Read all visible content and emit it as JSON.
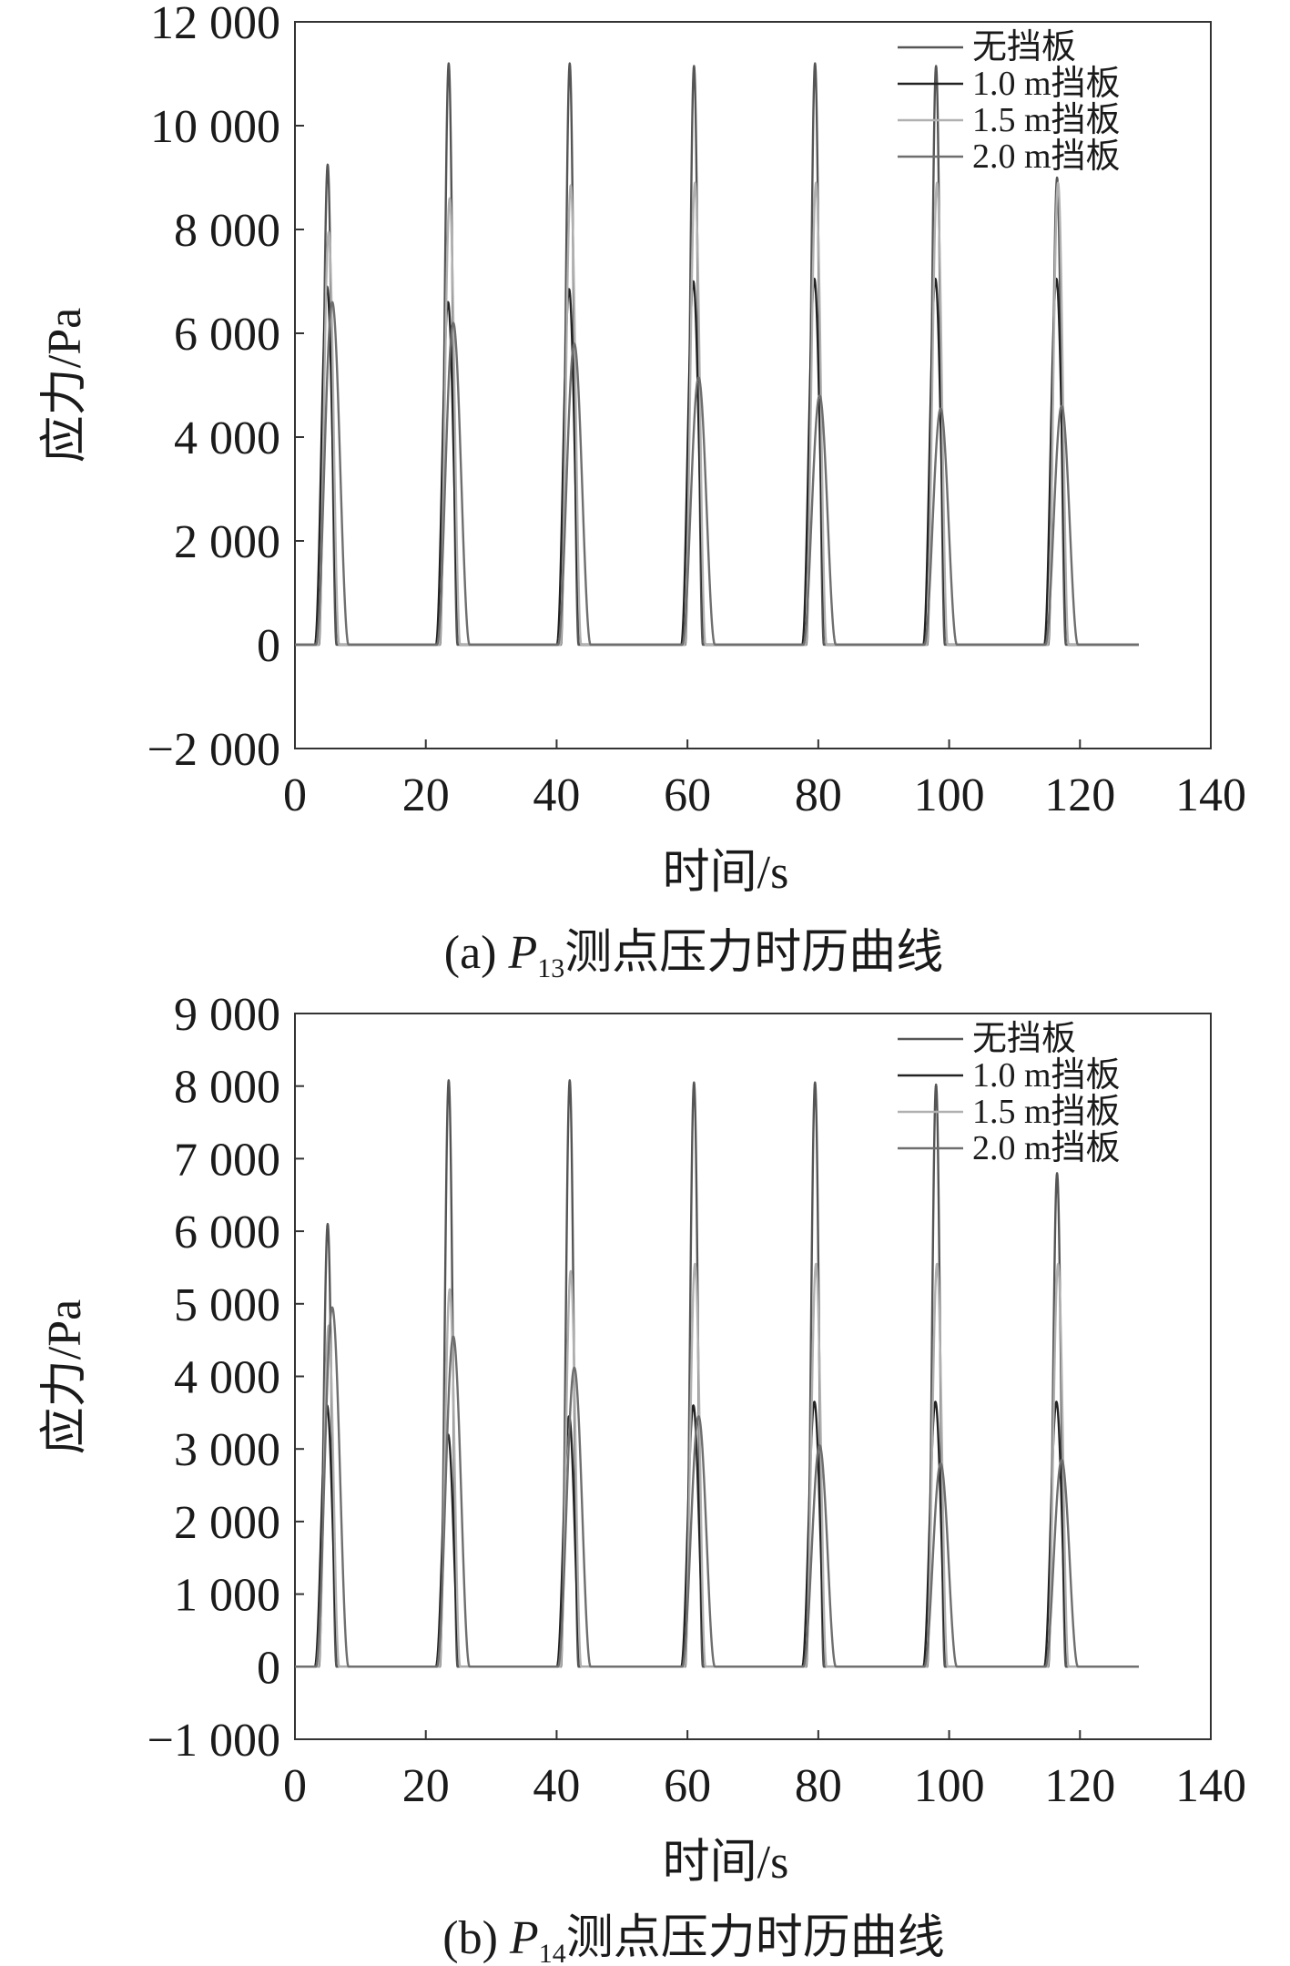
{
  "chart_data": [
    {
      "type": "line",
      "caption": {
        "prefix": "(a) ",
        "var": "P",
        "sub": "13",
        "rest": "测点压力时历曲线"
      },
      "xlabel": "时间/s",
      "ylabel": "应力/Pa",
      "xlim": [
        0,
        140
      ],
      "ylim": [
        -2000,
        12000
      ],
      "xticks": [
        0,
        20,
        40,
        60,
        80,
        100,
        120,
        140
      ],
      "xtick_labels": [
        "0",
        "20",
        "40",
        "60",
        "80",
        "100",
        "120",
        "140"
      ],
      "yticks": [
        -2000,
        0,
        2000,
        4000,
        6000,
        8000,
        10000,
        12000
      ],
      "ytick_labels": [
        "−2 000",
        "0",
        "2 000",
        "4 000",
        "6 000",
        "8 000",
        "10 000",
        "12 000"
      ],
      "grid": false,
      "legend_position": "top-right",
      "x_end": 129,
      "pulse_centers": [
        5,
        23.5,
        42,
        61,
        79.5,
        98,
        116.5
      ],
      "series": [
        {
          "name": "无挡板",
          "color": "#555555",
          "peaks": [
            9250,
            11200,
            11200,
            11150,
            11200,
            11150,
            9000
          ]
        },
        {
          "name": "1.0 m挡板",
          "color": "#222222",
          "peaks": [
            6900,
            6600,
            6850,
            7000,
            7050,
            7050,
            7050
          ]
        },
        {
          "name": "1.5 m挡板",
          "color": "#b0b0b0",
          "peaks": [
            7950,
            8600,
            8850,
            8900,
            8900,
            8900,
            8900
          ]
        },
        {
          "name": "2.0 m挡板",
          "color": "#6e6e6e",
          "peaks": [
            6600,
            6200,
            5800,
            5150,
            4800,
            4550,
            4600
          ]
        }
      ]
    },
    {
      "type": "line",
      "caption": {
        "prefix": "(b) ",
        "var": "P",
        "sub": "14",
        "rest": "测点压力时历曲线"
      },
      "xlabel": "时间/s",
      "ylabel": "应力/Pa",
      "xlim": [
        0,
        140
      ],
      "ylim": [
        -1000,
        9000
      ],
      "xticks": [
        0,
        20,
        40,
        60,
        80,
        100,
        120,
        140
      ],
      "xtick_labels": [
        "0",
        "20",
        "40",
        "60",
        "80",
        "100",
        "120",
        "140"
      ],
      "yticks": [
        -1000,
        0,
        1000,
        2000,
        3000,
        4000,
        5000,
        6000,
        7000,
        8000,
        9000
      ],
      "ytick_labels": [
        "−1 000",
        "0",
        "1 000",
        "2 000",
        "3 000",
        "4 000",
        "5 000",
        "6 000",
        "7 000",
        "8 000",
        "9 000"
      ],
      "grid": false,
      "legend_position": "top-right",
      "x_end": 129,
      "pulse_centers": [
        5,
        23.5,
        42,
        61,
        79.5,
        98,
        116.5
      ],
      "series": [
        {
          "name": "无挡板",
          "color": "#555555",
          "peaks": [
            6100,
            8080,
            8080,
            8050,
            8050,
            8020,
            6800
          ]
        },
        {
          "name": "1.0 m挡板",
          "color": "#222222",
          "peaks": [
            3600,
            3200,
            3450,
            3600,
            3650,
            3650,
            3650
          ]
        },
        {
          "name": "1.5 m挡板",
          "color": "#b0b0b0",
          "peaks": [
            4700,
            5200,
            5450,
            5550,
            5550,
            5550,
            5550
          ]
        },
        {
          "name": "2.0 m挡板",
          "color": "#6e6e6e",
          "peaks": [
            4950,
            4550,
            4120,
            3450,
            3050,
            2800,
            2850
          ]
        }
      ]
    }
  ]
}
